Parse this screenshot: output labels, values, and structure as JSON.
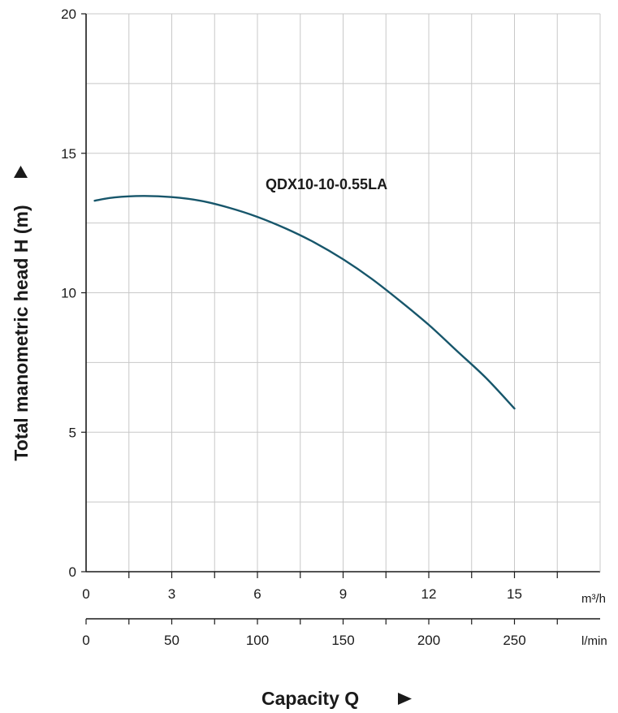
{
  "chart_data": {
    "type": "line",
    "title": "",
    "ylabel": "Total manometric head H (m)",
    "xlabel": "Capacity Q",
    "ylim": [
      0,
      20
    ],
    "yticks": [
      0,
      5,
      10,
      15,
      20
    ],
    "xlim": [
      0,
      18
    ],
    "xticks": [
      0,
      3,
      6,
      9,
      12,
      15
    ],
    "x_unit": "m³/h",
    "secondary_x": {
      "ticks": [
        0,
        50,
        100,
        150,
        200,
        250
      ],
      "unit": "l/min"
    },
    "grid": true,
    "series": [
      {
        "name": "QDX10-10-0.55LA",
        "color": "#17566b",
        "x": [
          0.3,
          1.0,
          2.0,
          3.0,
          4.0,
          5.0,
          6.0,
          7.0,
          8.0,
          9.0,
          10.0,
          11.0,
          12.0,
          13.0,
          14.0,
          15.0
        ],
        "y": [
          13.3,
          13.42,
          13.47,
          13.43,
          13.3,
          13.05,
          12.72,
          12.3,
          11.8,
          11.2,
          10.5,
          9.7,
          8.85,
          7.9,
          6.95,
          5.85
        ]
      }
    ]
  }
}
